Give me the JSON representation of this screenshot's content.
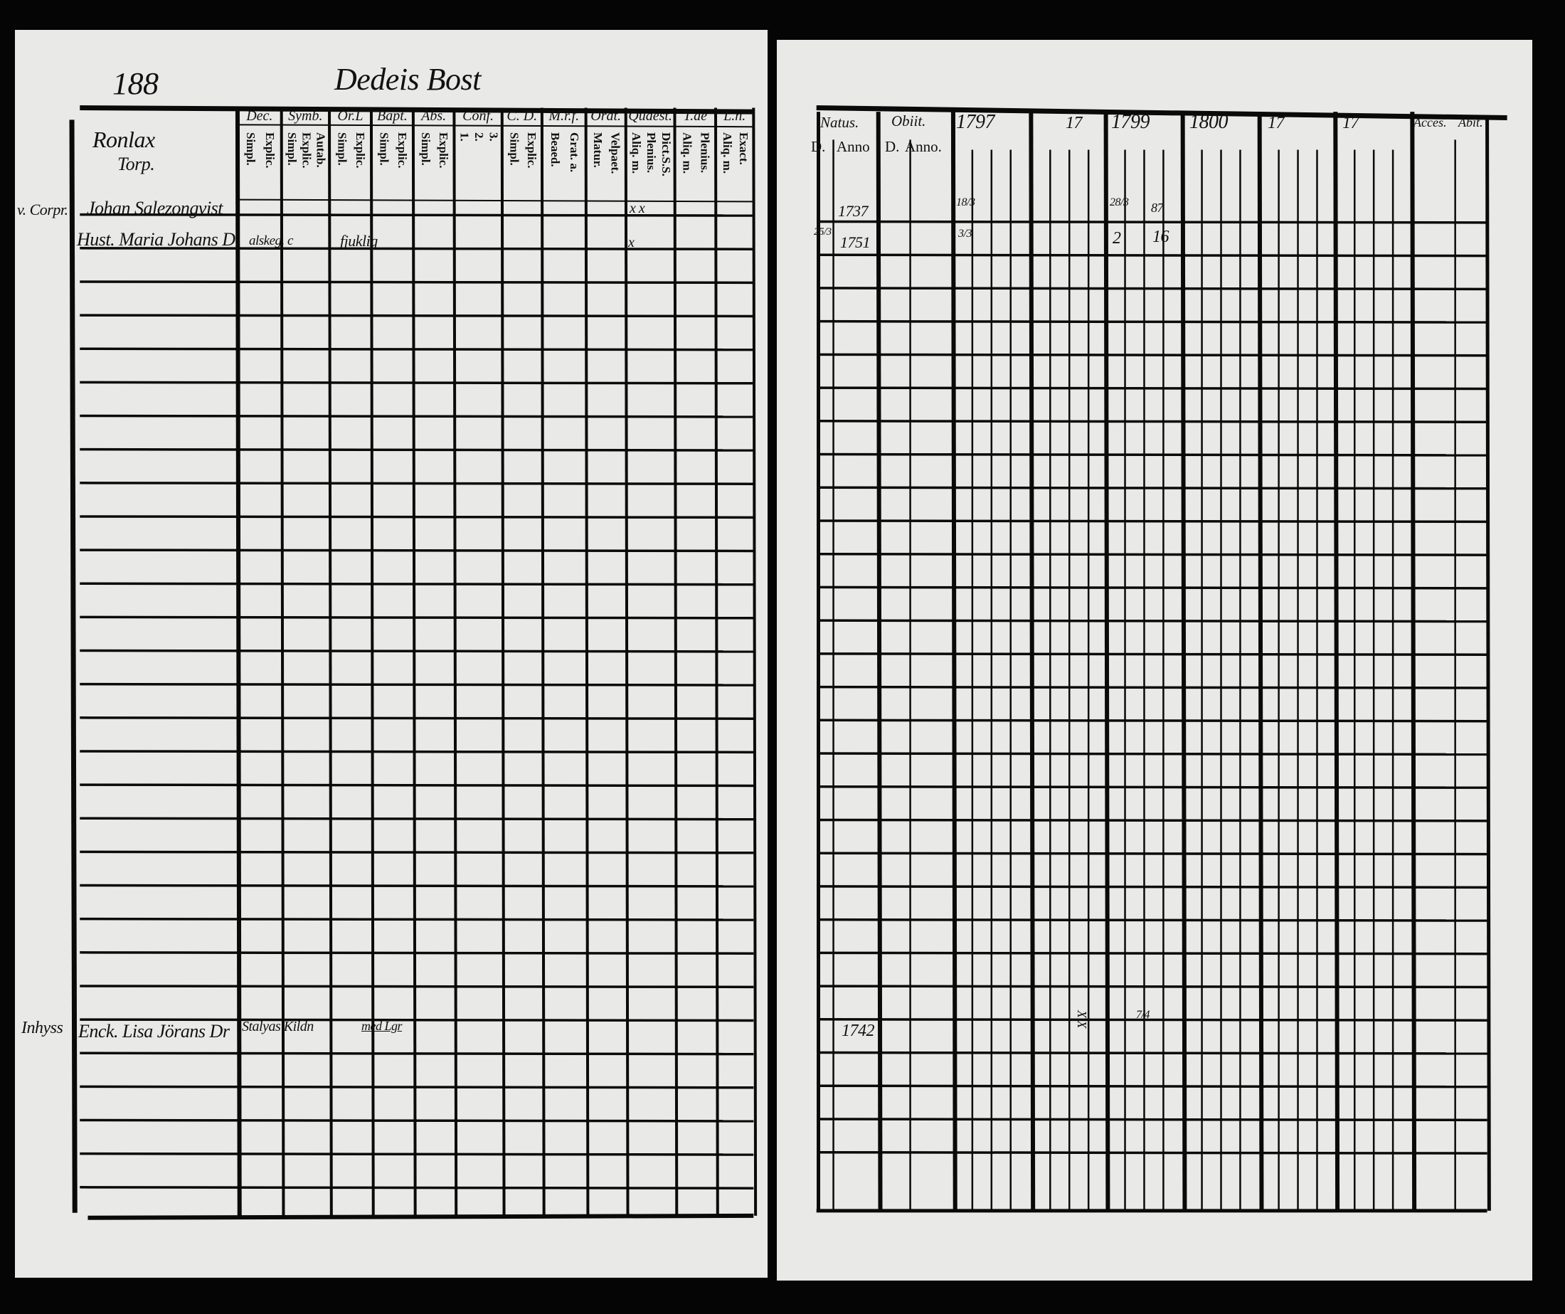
{
  "left_page": {
    "page_number": "188",
    "title": "Dedeis Bost",
    "village": "Ronlax",
    "place": "Torp.",
    "columns": [
      {
        "label": "Dec.",
        "sub": [
          "Explic.",
          "Simpl."
        ]
      },
      {
        "label": "Symb.",
        "sub": [
          "Autab.",
          "Explic.",
          "Simpl."
        ]
      },
      {
        "label": "Or.L",
        "sub": [
          "Explic.",
          "Simpl."
        ]
      },
      {
        "label": "Bapt.",
        "sub": [
          "Explic.",
          "Simpl."
        ]
      },
      {
        "label": "Abs.",
        "sub": [
          "Explic.",
          "Simpl."
        ]
      },
      {
        "label": "Conf.",
        "sub": [
          "3.",
          "2.",
          "1."
        ]
      },
      {
        "label": "C. D.",
        "sub": [
          "Explic.",
          "Simpl."
        ]
      },
      {
        "label": "M.r.f.",
        "sub": [
          "Grat. a.",
          "Beaed."
        ]
      },
      {
        "label": "Orat.",
        "sub": [
          "Velpaet.",
          "Matur."
        ]
      },
      {
        "label": "Quaest.",
        "sub": [
          "Dict.S.S.",
          "Plenius.",
          "Aliq. m."
        ]
      },
      {
        "label": "T.ae",
        "sub": [
          "Plenius.",
          "Aliq. m."
        ]
      },
      {
        "label": "L.n.",
        "sub": [
          "Exact.",
          "Aliq. m."
        ]
      }
    ],
    "entries": [
      {
        "margin": "v. Corpr.",
        "name": "Johan Salezongvist",
        "notes": "",
        "marks": "x x"
      },
      {
        "margin": "",
        "name": "Hust. Maria Johans D.",
        "notes": "alskeg. c",
        "notes2": "fjuklig",
        "marks": "x"
      },
      {
        "margin": "Inhyss",
        "name": "Enck. Lisa Jörans Dr",
        "notes": "Stalyas Kildn",
        "notes2": "med Lgr"
      }
    ]
  },
  "right_page": {
    "headers": {
      "natus": "Natus.",
      "obiit": "Obiit.",
      "d": "D.",
      "anno": "Anno",
      "anno2": "Anno.",
      "acces": "Acces.",
      "abit": "Abit."
    },
    "years": [
      "1797",
      "17",
      "1799",
      "1800",
      "17",
      "17"
    ],
    "entries": [
      {
        "natus_anno": "1737",
        "y1797": "18/3",
        "y1799": "28/3",
        "y1799b": "87"
      },
      {
        "natus_d": "25/3",
        "natus_anno": "1751",
        "y1797": "3/3",
        "y1799": "2",
        "y1799b": "16"
      },
      {
        "natus_anno": "1742",
        "y17": "X X",
        "y1799b": "7/4"
      }
    ]
  }
}
